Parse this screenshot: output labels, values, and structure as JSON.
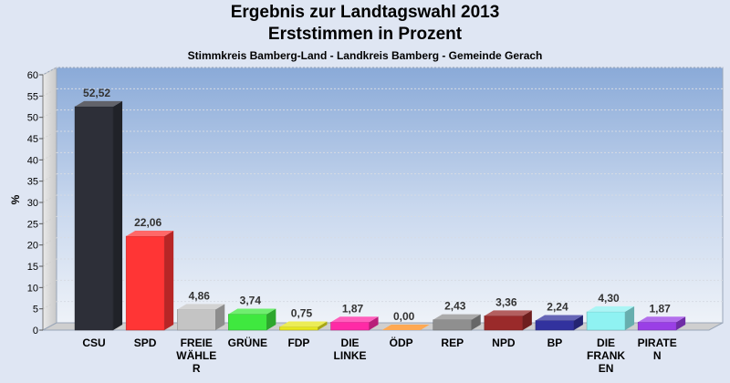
{
  "chart_data": {
    "type": "bar",
    "title": "Ergebnis zur Landtagswahl 2013",
    "subtitle": "Erststimmen in Prozent",
    "subsubtitle": "Stimmkreis Bamberg-Land - Landkreis Bamberg - Gemeinde Gerach",
    "ylabel": "%",
    "ylim": [
      0,
      60
    ],
    "yticks": [
      0,
      5,
      10,
      15,
      20,
      25,
      30,
      35,
      40,
      45,
      50,
      55,
      60
    ],
    "categories": [
      [
        "CSU"
      ],
      [
        "SPD"
      ],
      [
        "FREIE",
        "WÄHLE",
        "R"
      ],
      [
        "GRÜNE"
      ],
      [
        "FDP"
      ],
      [
        "DIE",
        "LINKE"
      ],
      [
        "ÖDP"
      ],
      [
        "REP"
      ],
      [
        "NPD"
      ],
      [
        "BP"
      ],
      [
        "DIE",
        "FRANK",
        "EN"
      ],
      [
        "PIRATE",
        "N"
      ]
    ],
    "values": [
      52.52,
      22.06,
      4.86,
      3.74,
      0.75,
      1.87,
      0.0,
      2.43,
      3.36,
      2.24,
      4.3,
      1.87
    ],
    "labels": [
      "52,52",
      "22,06",
      "4,86",
      "3,74",
      "0,75",
      "1,87",
      "0,00",
      "2,43",
      "3,36",
      "2,24",
      "4,30",
      "1,87"
    ],
    "colors": [
      "#2d2f38",
      "#ff3535",
      "#c4c4c4",
      "#3fe83f",
      "#e6e61e",
      "#ff2aa6",
      "#ff8c1a",
      "#8f8f8f",
      "#9a2a2a",
      "#32329e",
      "#8ff2f2",
      "#9a3fe6"
    ]
  }
}
